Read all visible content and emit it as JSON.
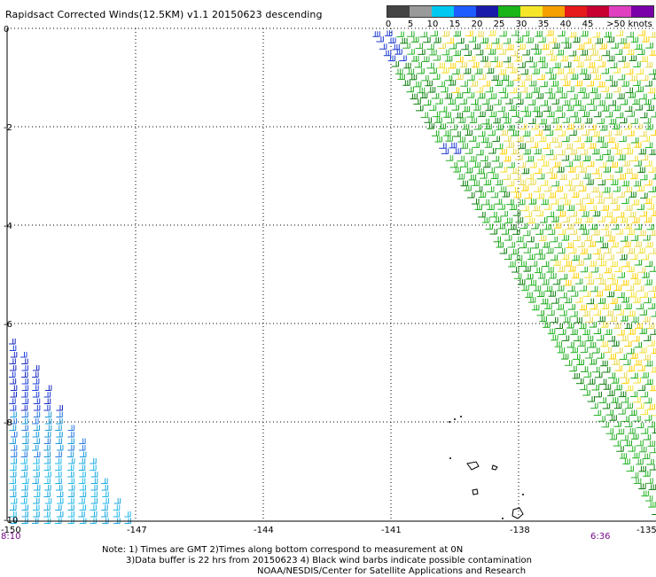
{
  "title": "Rapidsact Corrected Winds(12.5KM) v1.1 20150623 descending",
  "colorbar": {
    "labels": [
      "0",
      "5",
      "10",
      "15",
      "20",
      "25",
      "30",
      "35",
      "40",
      "45",
      ">50 knots"
    ],
    "colors": [
      "#444444",
      "#9a9a9a",
      "#00c8f0",
      "#1f5cff",
      "#1a1aaa",
      "#19b519",
      "#f5e62a",
      "#f5a000",
      "#e61a1a",
      "#c80032",
      "#e040c0",
      "#7a00aa"
    ]
  },
  "axes": {
    "y_labels": [
      "0",
      "-2",
      "-4",
      "-6",
      "-8",
      "-10"
    ],
    "x_labels": [
      "-150",
      "-147",
      "-144",
      "-141",
      "-138",
      "-135"
    ]
  },
  "times": {
    "left": "8:10",
    "right": "6:36"
  },
  "notes": {
    "line1": "Note: 1) Times are GMT 2)Times along bottom correspond to measurement at 0N",
    "line2": "3)Data buffer is 22 hrs from 20150623 4) Black wind barbs indicate possible contamination",
    "line3": "NOAA/NESDIS/Center for Satellite Applications and Research"
  }
}
